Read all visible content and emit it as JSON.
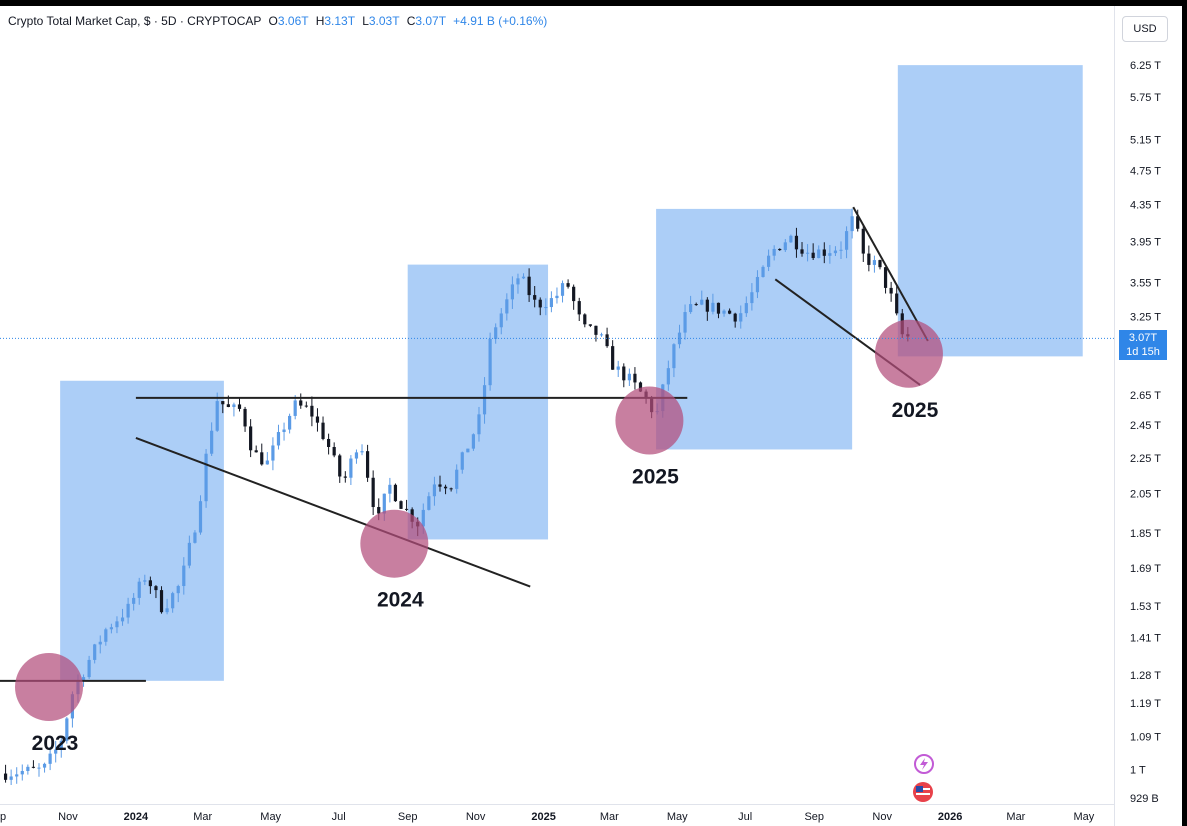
{
  "header": {
    "symbol": "Crypto Total Market Cap, $ · 5D · CRYPTOCAP",
    "o_label": "O",
    "o_value": "3.06T",
    "h_label": "H",
    "h_value": "3.13T",
    "l_label": "L",
    "l_value": "3.03T",
    "c_label": "C",
    "c_value": "3.07T",
    "change": "+4.91 B (+0.16%)"
  },
  "currency_button": "USD",
  "current_price": {
    "value": "3.07T",
    "countdown": "1d 15h"
  },
  "colors": {
    "accent": "#2f86e8",
    "box": "#a8cbf7",
    "circle": "#b34e7c",
    "candle_up": "#5b9be6",
    "candle_down": "#131722"
  },
  "chart_data": {
    "type": "candlestick",
    "scale": "log",
    "ylim": [
      0.929,
      6.4
    ],
    "xlim": [
      "2023-09-01",
      "2026-05-20"
    ],
    "price_ticks": [
      "6.25 T",
      "5.75 T",
      "5.15 T",
      "4.75 T",
      "4.35 T",
      "3.95 T",
      "3.55 T",
      "3.25 T",
      "2.65 T",
      "2.45 T",
      "2.25 T",
      "2.05 T",
      "1.85 T",
      "1.69 T",
      "1.53 T",
      "1.41 T",
      "1.28 T",
      "1.19 T",
      "1.09 T",
      "1 T",
      "929 B"
    ],
    "price_tick_values": [
      6.25,
      5.75,
      5.15,
      4.75,
      4.35,
      3.95,
      3.55,
      3.25,
      2.65,
      2.45,
      2.25,
      2.05,
      1.85,
      1.69,
      1.53,
      1.41,
      1.28,
      1.19,
      1.09,
      1.0,
      0.929
    ],
    "time_ticks": [
      {
        "label": "ep",
        "date": "2023-09-01",
        "bold": false
      },
      {
        "label": "Nov",
        "date": "2023-11-01",
        "bold": false
      },
      {
        "label": "2024",
        "date": "2024-01-01",
        "bold": true
      },
      {
        "label": "Mar",
        "date": "2024-03-01",
        "bold": false
      },
      {
        "label": "May",
        "date": "2024-05-01",
        "bold": false
      },
      {
        "label": "Jul",
        "date": "2024-07-01",
        "bold": false
      },
      {
        "label": "Sep",
        "date": "2024-09-01",
        "bold": false
      },
      {
        "label": "Nov",
        "date": "2024-11-01",
        "bold": false
      },
      {
        "label": "2025",
        "date": "2025-01-01",
        "bold": true
      },
      {
        "label": "Mar",
        "date": "2025-03-01",
        "bold": false
      },
      {
        "label": "May",
        "date": "2025-05-01",
        "bold": false
      },
      {
        "label": "Jul",
        "date": "2025-07-01",
        "bold": false
      },
      {
        "label": "Sep",
        "date": "2025-09-01",
        "bold": false
      },
      {
        "label": "Nov",
        "date": "2025-11-01",
        "bold": false
      },
      {
        "label": "2026",
        "date": "2026-01-01",
        "bold": true
      },
      {
        "label": "Mar",
        "date": "2026-03-01",
        "bold": false
      },
      {
        "label": "May",
        "date": "2026-05-01",
        "bold": false
      }
    ],
    "price_path": [
      [
        "2023-09-01",
        0.99
      ],
      [
        "2023-10-10",
        1.0
      ],
      [
        "2023-10-25",
        1.07
      ],
      [
        "2023-11-05",
        1.22
      ],
      [
        "2023-11-20",
        1.33
      ],
      [
        "2023-12-05",
        1.44
      ],
      [
        "2023-12-25",
        1.52
      ],
      [
        "2024-01-10",
        1.66
      ],
      [
        "2024-01-25",
        1.52
      ],
      [
        "2024-02-10",
        1.62
      ],
      [
        "2024-02-25",
        1.93
      ],
      [
        "2024-03-05",
        2.3
      ],
      [
        "2024-03-14",
        2.62
      ],
      [
        "2024-03-25",
        2.55
      ],
      [
        "2024-04-05",
        2.55
      ],
      [
        "2024-04-15",
        2.28
      ],
      [
        "2024-04-28",
        2.22
      ],
      [
        "2024-05-10",
        2.4
      ],
      [
        "2024-05-22",
        2.58
      ],
      [
        "2024-06-05",
        2.55
      ],
      [
        "2024-06-20",
        2.35
      ],
      [
        "2024-07-05",
        2.1
      ],
      [
        "2024-07-20",
        2.38
      ],
      [
        "2024-08-05",
        1.9
      ],
      [
        "2024-08-15",
        2.1
      ],
      [
        "2024-08-28",
        1.98
      ],
      [
        "2024-09-10",
        1.9
      ],
      [
        "2024-09-25",
        2.12
      ],
      [
        "2024-10-10",
        2.1
      ],
      [
        "2024-10-25",
        2.32
      ],
      [
        "2024-11-05",
        2.5
      ],
      [
        "2024-11-15",
        3.1
      ],
      [
        "2024-11-30",
        3.4
      ],
      [
        "2024-12-10",
        3.62
      ],
      [
        "2024-12-25",
        3.35
      ],
      [
        "2025-01-10",
        3.4
      ],
      [
        "2025-01-22",
        3.55
      ],
      [
        "2025-02-05",
        3.15
      ],
      [
        "2025-02-20",
        3.1
      ],
      [
        "2025-03-05",
        2.85
      ],
      [
        "2025-03-20",
        2.75
      ],
      [
        "2025-04-05",
        2.6
      ],
      [
        "2025-04-12",
        2.5
      ],
      [
        "2025-04-25",
        2.92
      ],
      [
        "2025-05-10",
        3.3
      ],
      [
        "2025-05-25",
        3.35
      ],
      [
        "2025-06-10",
        3.3
      ],
      [
        "2025-06-25",
        3.25
      ],
      [
        "2025-07-10",
        3.5
      ],
      [
        "2025-07-25",
        3.85
      ],
      [
        "2025-08-10",
        4.0
      ],
      [
        "2025-08-25",
        3.85
      ],
      [
        "2025-09-10",
        3.85
      ],
      [
        "2025-09-25",
        3.9
      ],
      [
        "2025-10-06",
        4.2
      ],
      [
        "2025-10-15",
        3.8
      ],
      [
        "2025-10-28",
        3.7
      ],
      [
        "2025-11-08",
        3.45
      ],
      [
        "2025-11-18",
        3.1
      ],
      [
        "2025-11-28",
        3.07
      ]
    ],
    "boxes": [
      {
        "start": "2023-10-25",
        "end": "2024-03-20",
        "low": 1.26,
        "high": 2.75
      },
      {
        "start": "2024-09-01",
        "end": "2025-01-05",
        "low": 1.82,
        "high": 3.72
      },
      {
        "start": "2025-04-12",
        "end": "2025-10-05",
        "low": 2.3,
        "high": 4.3
      },
      {
        "start": "2025-11-15",
        "end": "2026-04-30",
        "low": 2.93,
        "high": 6.25
      }
    ],
    "trendlines": [
      {
        "x1": "2023-09-01",
        "y1": 1.26,
        "x2": "2024-01-10",
        "y2": 1.26
      },
      {
        "x1": "2024-01-01",
        "y1": 2.63,
        "x2": "2025-05-10",
        "y2": 2.63
      },
      {
        "x1": "2024-01-01",
        "y1": 2.37,
        "x2": "2024-12-20",
        "y2": 1.61
      },
      {
        "x1": "2025-07-28",
        "y1": 3.58,
        "x2": "2025-12-05",
        "y2": 2.72
      },
      {
        "x1": "2025-10-06",
        "y1": 4.32,
        "x2": "2025-12-12",
        "y2": 3.05
      }
    ],
    "markers": [
      {
        "date": "2023-10-15",
        "value": 1.24,
        "label": "2023"
      },
      {
        "date": "2024-08-20",
        "value": 1.8,
        "label": "2024"
      },
      {
        "date": "2025-04-06",
        "value": 2.48,
        "label": "2025"
      },
      {
        "date": "2025-11-25",
        "value": 2.95,
        "label": "2025"
      }
    ],
    "current": 3.07
  }
}
